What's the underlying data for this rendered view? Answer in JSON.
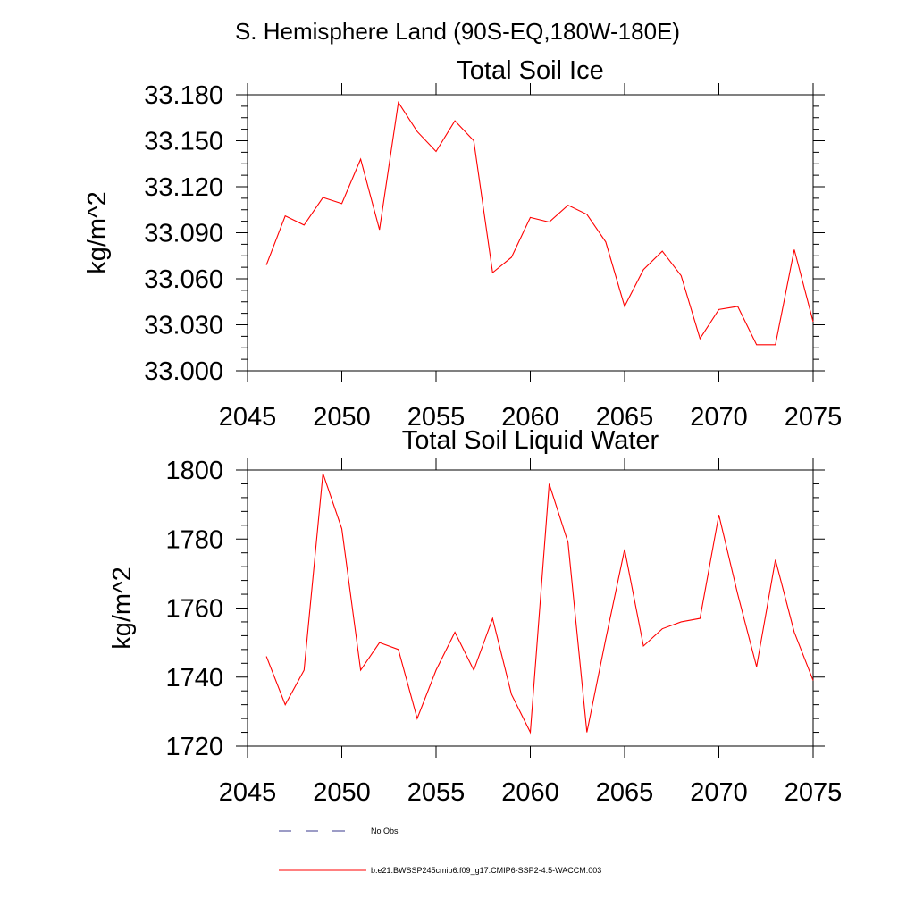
{
  "figure": {
    "main_title": "S. Hemisphere Land (90S-EQ,180W-180E)"
  },
  "legend": {
    "obs_label": "No Obs",
    "model_label": "b.e21.BWSSP245cmip6.f09_g17.CMIP6-SSP2-4.5-WACCM.003",
    "obs_color": "#3a3a8c",
    "model_color": "#ff0000"
  },
  "chart_data": [
    {
      "type": "line",
      "title": "Total Soil Ice",
      "xlabel": "",
      "ylabel": "kg/m^2",
      "xlim": [
        2045,
        2075
      ],
      "ylim": [
        33.0,
        33.18
      ],
      "x_ticks": [
        "2045",
        "2050",
        "2055",
        "2060",
        "2065",
        "2070",
        "2075"
      ],
      "y_ticks": [
        "33.000",
        "33.030",
        "33.060",
        "33.090",
        "33.120",
        "33.150",
        "33.180"
      ],
      "x_tick_values": [
        2045,
        2050,
        2055,
        2060,
        2065,
        2070,
        2075
      ],
      "y_tick_values": [
        33.0,
        33.03,
        33.06,
        33.09,
        33.12,
        33.15,
        33.18
      ],
      "series": [
        {
          "name": "b.e21.BWSSP245cmip6.f09_g17.CMIP6-SSP2-4.5-WACCM.003",
          "color": "#ff0000",
          "x": [
            2046,
            2047,
            2048,
            2049,
            2050,
            2051,
            2052,
            2053,
            2054,
            2055,
            2056,
            2057,
            2058,
            2059,
            2060,
            2061,
            2062,
            2063,
            2064,
            2065,
            2066,
            2067,
            2068,
            2069,
            2070,
            2071,
            2072,
            2073,
            2074,
            2075
          ],
          "values": [
            33.069,
            33.101,
            33.095,
            33.113,
            33.109,
            33.138,
            33.092,
            33.175,
            33.156,
            33.143,
            33.163,
            33.15,
            33.064,
            33.074,
            33.1,
            33.097,
            33.108,
            33.102,
            33.084,
            33.042,
            33.066,
            33.078,
            33.062,
            33.021,
            33.04,
            33.042,
            33.017,
            33.017,
            33.079,
            33.032
          ]
        }
      ]
    },
    {
      "type": "line",
      "title": "Total Soil Liquid Water",
      "xlabel": "",
      "ylabel": "kg/m^2",
      "xlim": [
        2045,
        2075
      ],
      "ylim": [
        1720,
        1800
      ],
      "x_ticks": [
        "2045",
        "2050",
        "2055",
        "2060",
        "2065",
        "2070",
        "2075"
      ],
      "y_ticks": [
        "1720",
        "1740",
        "1760",
        "1780",
        "1800"
      ],
      "x_tick_values": [
        2045,
        2050,
        2055,
        2060,
        2065,
        2070,
        2075
      ],
      "y_tick_values": [
        1720,
        1740,
        1760,
        1780,
        1800
      ],
      "series": [
        {
          "name": "b.e21.BWSSP245cmip6.f09_g17.CMIP6-SSP2-4.5-WACCM.003",
          "color": "#ff0000",
          "x": [
            2046,
            2047,
            2048,
            2049,
            2050,
            2051,
            2052,
            2053,
            2054,
            2055,
            2056,
            2057,
            2058,
            2059,
            2060,
            2061,
            2062,
            2063,
            2064,
            2065,
            2066,
            2067,
            2068,
            2069,
            2070,
            2071,
            2072,
            2073,
            2074,
            2075
          ],
          "values": [
            1746,
            1732,
            1742,
            1799,
            1783,
            1742,
            1750,
            1748,
            1728,
            1742,
            1753,
            1742,
            1757,
            1735,
            1724,
            1796,
            1779,
            1724,
            1751,
            1777,
            1749,
            1754,
            1756,
            1757,
            1787,
            1764,
            1743,
            1774,
            1753,
            1739
          ]
        }
      ]
    }
  ]
}
